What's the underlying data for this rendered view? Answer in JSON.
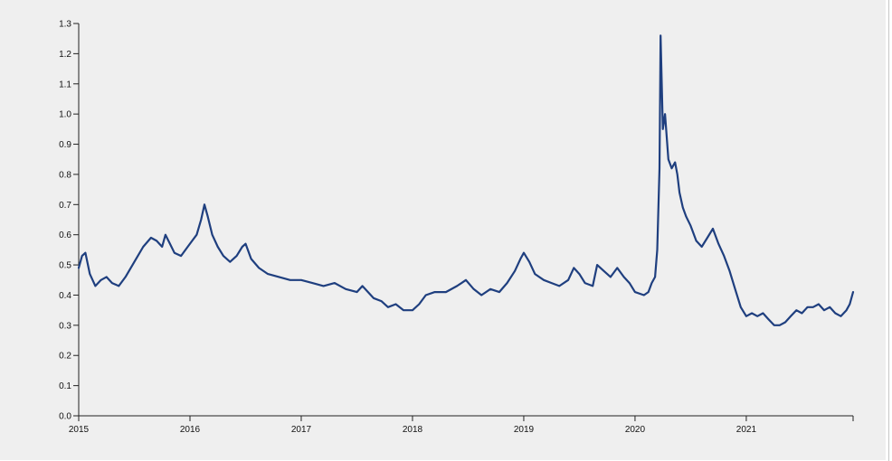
{
  "chart_data": {
    "type": "line",
    "title": "",
    "xlabel": "",
    "ylabel": "",
    "ylim": [
      0.0,
      1.3
    ],
    "xlim": [
      2015.0,
      2021.96
    ],
    "y_ticks": [
      0.0,
      0.1,
      0.2,
      0.3,
      0.4,
      0.5,
      0.6,
      0.7,
      0.8,
      0.9,
      1.0,
      1.1,
      1.2,
      1.3
    ],
    "y_tick_labels": [
      "0.0",
      "0.1",
      "0.2",
      "0.3",
      "0.4",
      "0.5",
      "0.6",
      "0.7",
      "0.8",
      "0.9",
      "1.0",
      "1.1",
      "1.2",
      "1.3"
    ],
    "x_ticks": [
      2015,
      2016,
      2017,
      2018,
      2019,
      2020,
      2021
    ],
    "x_tick_labels": [
      "2015",
      "2016",
      "2017",
      "2018",
      "2019",
      "2020",
      "2021"
    ],
    "grid": false,
    "legend": "none",
    "line_color": "#1f3f7f",
    "series": [
      {
        "x": [
          2015.0,
          2015.03,
          2015.06,
          2015.1,
          2015.15,
          2015.2,
          2015.25,
          2015.3,
          2015.36,
          2015.42,
          2015.5,
          2015.58,
          2015.65,
          2015.7,
          2015.75,
          2015.78,
          2015.82,
          2015.86,
          2015.92,
          2015.98,
          2016.02,
          2016.06,
          2016.1,
          2016.13,
          2016.16,
          2016.2,
          2016.25,
          2016.3,
          2016.36,
          2016.42,
          2016.47,
          2016.5,
          2016.55,
          2016.62,
          2016.7,
          2016.8,
          2016.9,
          2017.0,
          2017.1,
          2017.2,
          2017.3,
          2017.4,
          2017.5,
          2017.55,
          2017.65,
          2017.72,
          2017.78,
          2017.85,
          2017.92,
          2018.0,
          2018.06,
          2018.12,
          2018.2,
          2018.3,
          2018.4,
          2018.48,
          2018.55,
          2018.62,
          2018.7,
          2018.78,
          2018.85,
          2018.92,
          2018.97,
          2019.0,
          2019.05,
          2019.1,
          2019.18,
          2019.25,
          2019.32,
          2019.4,
          2019.45,
          2019.5,
          2019.55,
          2019.62,
          2019.66,
          2019.72,
          2019.78,
          2019.84,
          2019.9,
          2019.95,
          2020.0,
          2020.08,
          2020.12,
          2020.15,
          2020.18,
          2020.2,
          2020.22,
          2020.23,
          2020.25,
          2020.27,
          2020.3,
          2020.33,
          2020.36,
          2020.38,
          2020.4,
          2020.43,
          2020.46,
          2020.5,
          2020.55,
          2020.6,
          2020.65,
          2020.7,
          2020.75,
          2020.8,
          2020.85,
          2020.9,
          2020.95,
          2021.0,
          2021.05,
          2021.1,
          2021.15,
          2021.2,
          2021.25,
          2021.3,
          2021.35,
          2021.4,
          2021.45,
          2021.5,
          2021.55,
          2021.6,
          2021.65,
          2021.7,
          2021.75,
          2021.8,
          2021.85,
          2021.9,
          2021.93,
          2021.96
        ],
        "y": [
          0.49,
          0.53,
          0.54,
          0.47,
          0.43,
          0.45,
          0.46,
          0.44,
          0.43,
          0.46,
          0.51,
          0.56,
          0.59,
          0.58,
          0.56,
          0.6,
          0.57,
          0.54,
          0.53,
          0.56,
          0.58,
          0.6,
          0.65,
          0.7,
          0.66,
          0.6,
          0.56,
          0.53,
          0.51,
          0.53,
          0.56,
          0.57,
          0.52,
          0.49,
          0.47,
          0.46,
          0.45,
          0.45,
          0.44,
          0.43,
          0.44,
          0.42,
          0.41,
          0.43,
          0.39,
          0.38,
          0.36,
          0.37,
          0.35,
          0.35,
          0.37,
          0.4,
          0.41,
          0.41,
          0.43,
          0.45,
          0.42,
          0.4,
          0.42,
          0.41,
          0.44,
          0.48,
          0.52,
          0.54,
          0.51,
          0.47,
          0.45,
          0.44,
          0.43,
          0.45,
          0.49,
          0.47,
          0.44,
          0.43,
          0.5,
          0.48,
          0.46,
          0.49,
          0.46,
          0.44,
          0.41,
          0.4,
          0.41,
          0.44,
          0.46,
          0.55,
          0.82,
          1.26,
          0.95,
          1.0,
          0.85,
          0.82,
          0.84,
          0.8,
          0.74,
          0.69,
          0.66,
          0.63,
          0.58,
          0.56,
          0.59,
          0.62,
          0.57,
          0.53,
          0.48,
          0.42,
          0.36,
          0.33,
          0.34,
          0.33,
          0.34,
          0.32,
          0.3,
          0.3,
          0.31,
          0.33,
          0.35,
          0.34,
          0.36,
          0.36,
          0.37,
          0.35,
          0.36,
          0.34,
          0.33,
          0.35,
          0.37,
          0.41
        ]
      }
    ]
  }
}
